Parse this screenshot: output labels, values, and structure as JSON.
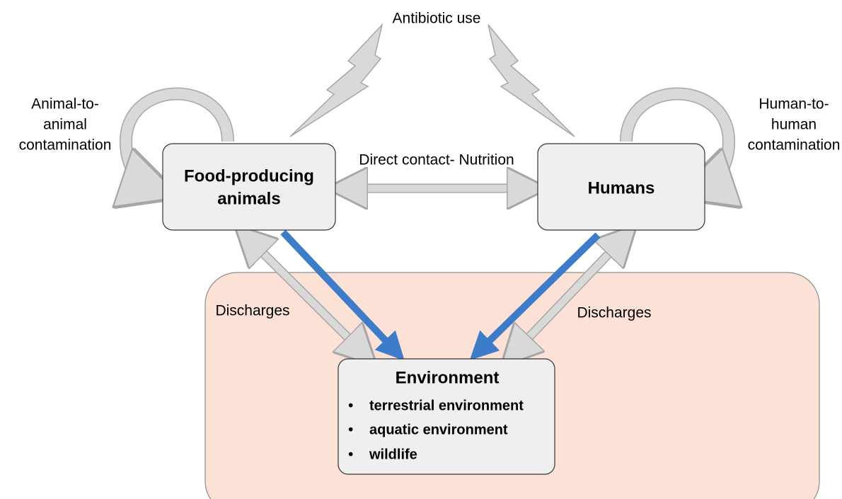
{
  "antibiotic_label": "Antibiotic use",
  "left_loop_label": [
    "Animal-to-",
    "animal",
    "contamination"
  ],
  "right_loop_label": [
    "Human-to-",
    "human",
    "contamination"
  ],
  "link_label": "Direct contact- Nutrition",
  "nodes": [
    {
      "label": [
        "Food-producing",
        "animals"
      ]
    },
    {
      "label": [
        "Humans"
      ]
    },
    {
      "label": [
        "Environment"
      ],
      "items": [
        "terrestrial environment",
        "aquatic environment",
        "wildlife"
      ]
    }
  ],
  "discharges_left": "Discharges",
  "discharges_right": "Discharges"
}
